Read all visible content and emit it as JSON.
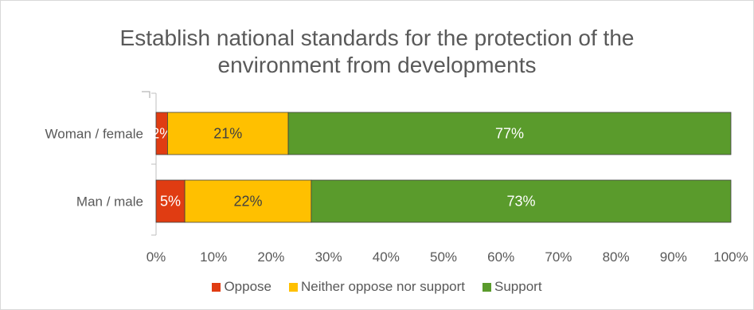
{
  "chart_data": {
    "type": "bar",
    "orientation": "horizontal",
    "stacked": true,
    "title": "Establish national standards for the protection of the environment from developments",
    "title_lines": [
      "Establish national standards for the protection of the",
      "environment from developments"
    ],
    "categories": [
      "Woman / female",
      "Man / male"
    ],
    "series": [
      {
        "name": "Oppose",
        "color": "#e03c12",
        "values": [
          2,
          5
        ],
        "labels": [
          "2%",
          "5%"
        ]
      },
      {
        "name": "Neither oppose nor support",
        "color": "#ffc000",
        "values": [
          21,
          22
        ],
        "labels": [
          "21%",
          "22%"
        ]
      },
      {
        "name": "Support",
        "color": "#5a9b2c",
        "values": [
          77,
          73
        ],
        "labels": [
          "77%",
          "73%"
        ]
      }
    ],
    "x_ticks": [
      "0%",
      "10%",
      "20%",
      "30%",
      "40%",
      "50%",
      "60%",
      "70%",
      "80%",
      "90%",
      "100%"
    ],
    "xlim": [
      0,
      100
    ],
    "grid": false,
    "legend_position": "bottom"
  }
}
